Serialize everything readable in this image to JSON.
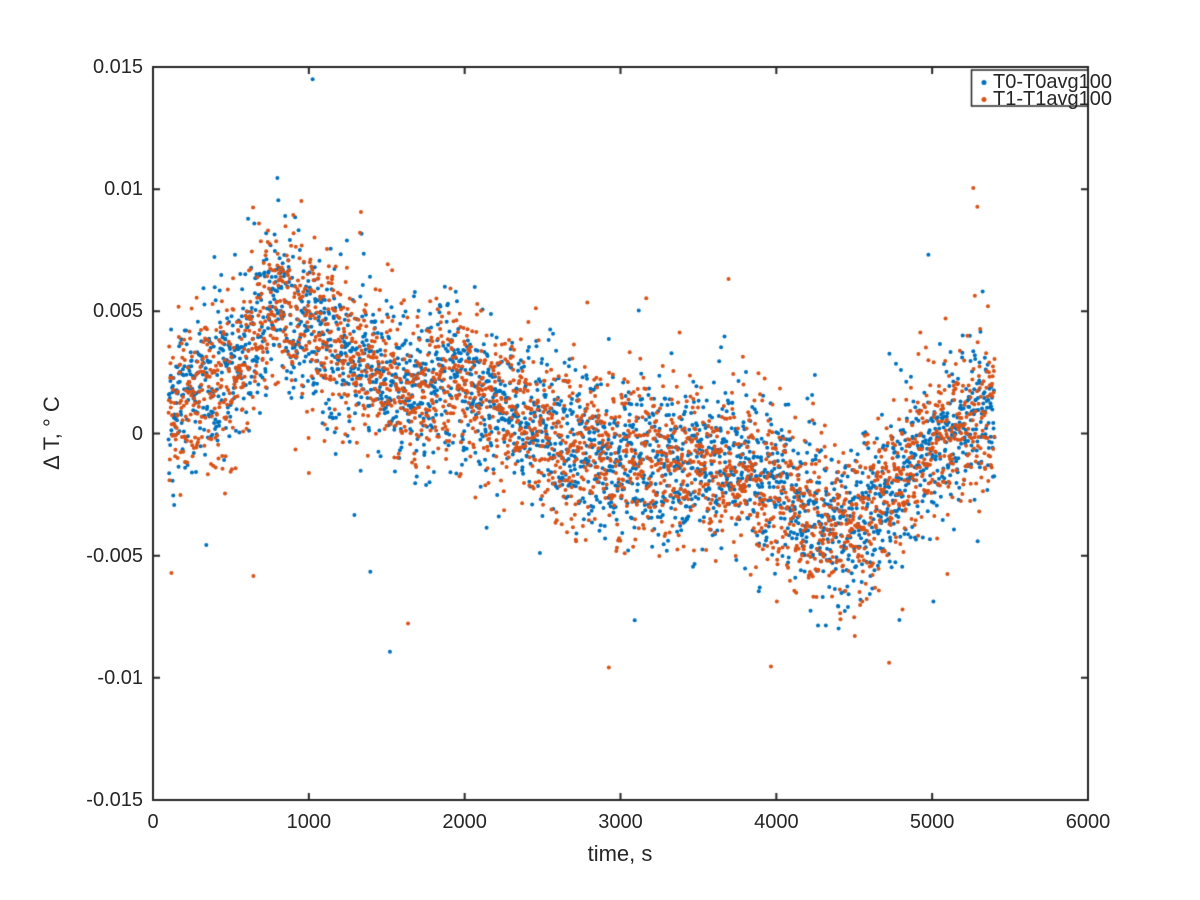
{
  "figure": {
    "background": "#ffffff",
    "axis_color": "#262626",
    "text_color": "#262626"
  },
  "chart_data": {
    "type": "scatter",
    "title": "",
    "xlabel": "time, s",
    "ylabel": "Δ T, ° C",
    "xlim": [
      0,
      6000
    ],
    "ylim": [
      -0.015,
      0.015
    ],
    "grid": false,
    "xticks": {
      "values": [
        0,
        1000,
        2000,
        3000,
        4000,
        5000,
        6000
      ],
      "labels": [
        "0",
        "1000",
        "2000",
        "3000",
        "4000",
        "5000",
        "6000"
      ]
    },
    "yticks": {
      "values": [
        0.015,
        0.01,
        0.005,
        0,
        -0.005,
        -0.01,
        -0.015
      ],
      "labels": [
        "0.015",
        "0.01",
        "0.005",
        "0",
        "-0.005",
        "-0.01",
        "-0.015"
      ]
    },
    "legend": {
      "position": "top-right",
      "entries": [
        {
          "label": "T0-T0avg100",
          "color": "#0072BD"
        },
        {
          "label": "T1-T1avg100",
          "color": "#D95319"
        }
      ]
    },
    "series": [
      {
        "name": "T0-T0avg100",
        "color": "#0072BD",
        "marker": "dot",
        "marker_radius_px": 2,
        "n_points": 2650,
        "t_start": 100,
        "t_end": 5400,
        "seed": 20
      },
      {
        "name": "T1-T1avg100",
        "color": "#D95319",
        "marker": "dot",
        "marker_radius_px": 2,
        "n_points": 2650,
        "t_start": 100,
        "t_end": 5400,
        "seed": 77
      }
    ],
    "trend": {
      "t": [
        100,
        250,
        400,
        550,
        700,
        780,
        850,
        950,
        1050,
        1200,
        1350,
        1500,
        1650,
        1800,
        1950,
        2100,
        2250,
        2400,
        2550,
        2700,
        2900,
        3100,
        3300,
        3500,
        3700,
        3900,
        4050,
        4200,
        4350,
        4500,
        4650,
        4800,
        4950,
        5100,
        5250,
        5400
      ],
      "mean": [
        0.001,
        0.0016,
        0.002,
        0.003,
        0.0047,
        0.0056,
        0.0052,
        0.0046,
        0.0043,
        0.0036,
        0.0027,
        0.002,
        0.0017,
        0.002,
        0.0022,
        0.0016,
        0.001,
        0.0005,
        -0.0001,
        -0.0007,
        -0.0009,
        -0.001,
        -0.0012,
        -0.0011,
        -0.0014,
        -0.0018,
        -0.0024,
        -0.0032,
        -0.0037,
        -0.0036,
        -0.0028,
        -0.0018,
        -0.0009,
        -0.0002,
        0.0006,
        0.001
      ]
    },
    "noise": {
      "std": 0.00155,
      "heavy_tail": [
        [
          0.004,
          3.0
        ],
        [
          0.018,
          2.4
        ],
        [
          0.09,
          1.7
        ]
      ],
      "clip": 0.0145
    }
  }
}
